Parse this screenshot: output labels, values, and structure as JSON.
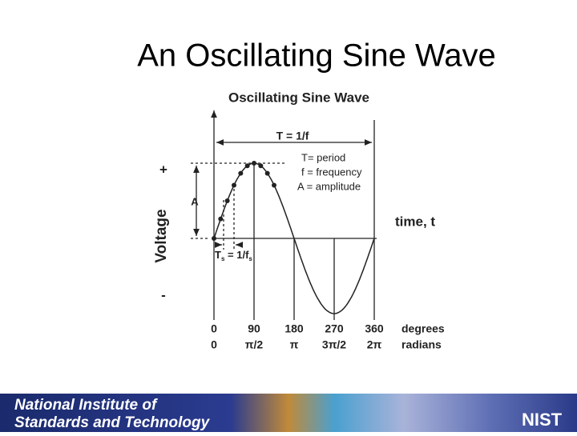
{
  "slide": {
    "title": "An Oscillating Sine Wave"
  },
  "diagram": {
    "title": "Oscillating Sine Wave",
    "period_label": "T = 1/f",
    "legend": [
      "T= period",
      "f = frequency",
      "A = amplitude"
    ],
    "y_axis": {
      "plus": "+",
      "label": "Voltage",
      "minus": "-"
    },
    "amplitude_label": "A",
    "x_axis_label": "time, t",
    "sampling_label": {
      "t": "T",
      "t_sub": "s",
      "eq": " = 1/f",
      "f_sub": "s"
    },
    "degrees": {
      "ticks": [
        "0",
        "90",
        "180",
        "270",
        "360"
      ],
      "unit": "degrees"
    },
    "radians": {
      "ticks": [
        "0",
        "π/2",
        "π",
        "3π/2",
        "2π"
      ],
      "unit": "radians"
    }
  },
  "footer": {
    "line1": "National Institute of",
    "line2": "Standards and Technology",
    "logo": "NIST"
  }
}
